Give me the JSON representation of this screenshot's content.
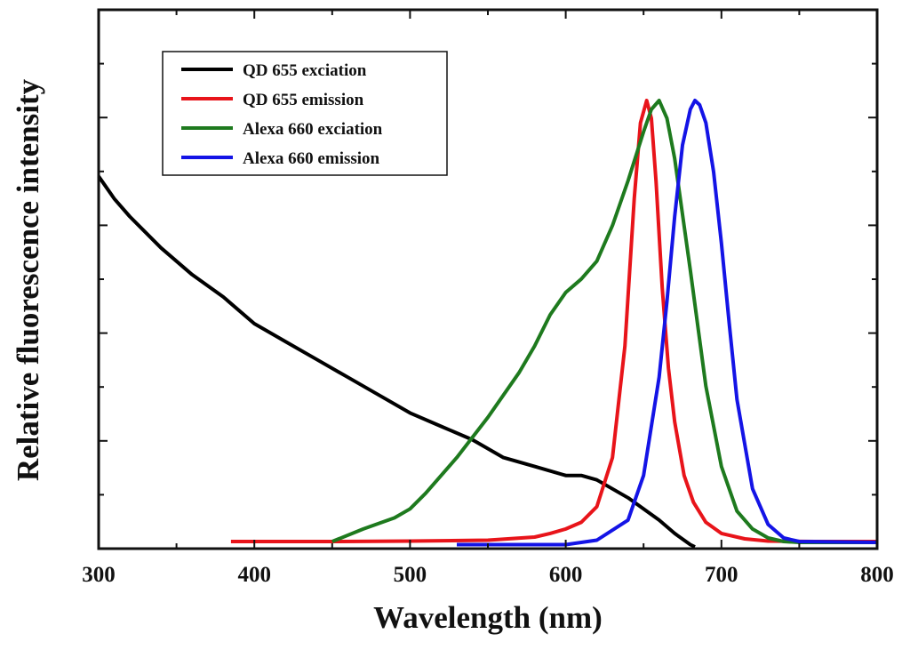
{
  "chart_data": {
    "type": "line",
    "title": "",
    "xlabel": "Wavelength (nm)",
    "ylabel": "Relative fluorescence intensity",
    "xlim": [
      300,
      800
    ],
    "ylim": [
      0,
      1.0
    ],
    "x_ticks": [
      300,
      400,
      500,
      600,
      700,
      800
    ],
    "y_ticks_labeled": false,
    "legend_position": "top-left",
    "series": [
      {
        "name": "QD 655 exciation",
        "color": "#000000",
        "x": [
          300,
          310,
          320,
          340,
          360,
          380,
          400,
          420,
          440,
          460,
          480,
          500,
          520,
          540,
          560,
          580,
          600,
          610,
          620,
          640,
          660,
          670,
          680,
          683
        ],
        "y": [
          0.83,
          0.78,
          0.74,
          0.67,
          0.61,
          0.56,
          0.5,
          0.46,
          0.42,
          0.38,
          0.34,
          0.3,
          0.27,
          0.24,
          0.2,
          0.18,
          0.16,
          0.16,
          0.15,
          0.11,
          0.06,
          0.03,
          0.005,
          0.0
        ]
      },
      {
        "name": "QD 655 emission",
        "color": "#e8141a",
        "x": [
          385,
          450,
          500,
          550,
          580,
          590,
          600,
          610,
          620,
          630,
          638,
          644,
          648,
          652,
          655,
          658,
          662,
          666,
          670,
          676,
          682,
          690,
          700,
          715,
          730,
          760,
          800
        ],
        "y": [
          0.012,
          0.012,
          0.013,
          0.015,
          0.022,
          0.03,
          0.04,
          0.055,
          0.09,
          0.2,
          0.45,
          0.78,
          0.95,
          1.0,
          0.96,
          0.82,
          0.58,
          0.4,
          0.28,
          0.16,
          0.1,
          0.055,
          0.03,
          0.018,
          0.013,
          0.012,
          0.012
        ]
      },
      {
        "name": "Alexa 660 exciation",
        "color": "#1e7a1e",
        "x": [
          450,
          470,
          490,
          500,
          510,
          530,
          550,
          570,
          580,
          590,
          600,
          610,
          620,
          630,
          640,
          650,
          655,
          660,
          665,
          670,
          680,
          690,
          700,
          710,
          720,
          730,
          740,
          750,
          800
        ],
        "y": [
          0.012,
          0.04,
          0.065,
          0.085,
          0.12,
          0.2,
          0.29,
          0.39,
          0.45,
          0.52,
          0.57,
          0.6,
          0.64,
          0.72,
          0.82,
          0.93,
          0.98,
          1.0,
          0.96,
          0.87,
          0.62,
          0.36,
          0.18,
          0.08,
          0.04,
          0.02,
          0.012,
          0.01,
          0.01
        ]
      },
      {
        "name": "Alexa 660 emission",
        "color": "#1414e6",
        "x": [
          530,
          600,
          620,
          640,
          650,
          660,
          665,
          670,
          675,
          680,
          683,
          686,
          690,
          695,
          700,
          705,
          710,
          720,
          730,
          740,
          750,
          800
        ],
        "y": [
          0.005,
          0.005,
          0.015,
          0.06,
          0.16,
          0.38,
          0.55,
          0.74,
          0.9,
          0.98,
          1.0,
          0.99,
          0.95,
          0.84,
          0.68,
          0.5,
          0.33,
          0.13,
          0.05,
          0.02,
          0.012,
          0.01
        ]
      }
    ]
  }
}
